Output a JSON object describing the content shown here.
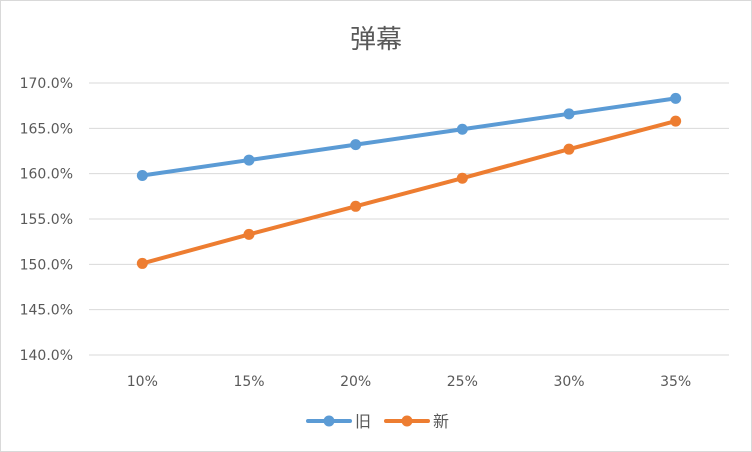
{
  "chart_data": {
    "type": "line",
    "title": "弹幕",
    "xlabel": "",
    "ylabel": "",
    "categories": [
      "10%",
      "15%",
      "20%",
      "25%",
      "30%",
      "35%"
    ],
    "series": [
      {
        "name": "旧",
        "color": "#5B9BD5",
        "values": [
          159.8,
          161.5,
          163.2,
          164.9,
          166.6,
          168.3
        ]
      },
      {
        "name": "新",
        "color": "#ED7D31",
        "values": [
          150.1,
          153.3,
          156.4,
          159.5,
          162.7,
          165.8
        ]
      }
    ],
    "ylim": [
      140,
      170
    ],
    "yticks": [
      "140.0%",
      "145.0%",
      "150.0%",
      "155.0%",
      "160.0%",
      "165.0%",
      "170.0%"
    ],
    "grid": true,
    "legend_position": "bottom"
  }
}
